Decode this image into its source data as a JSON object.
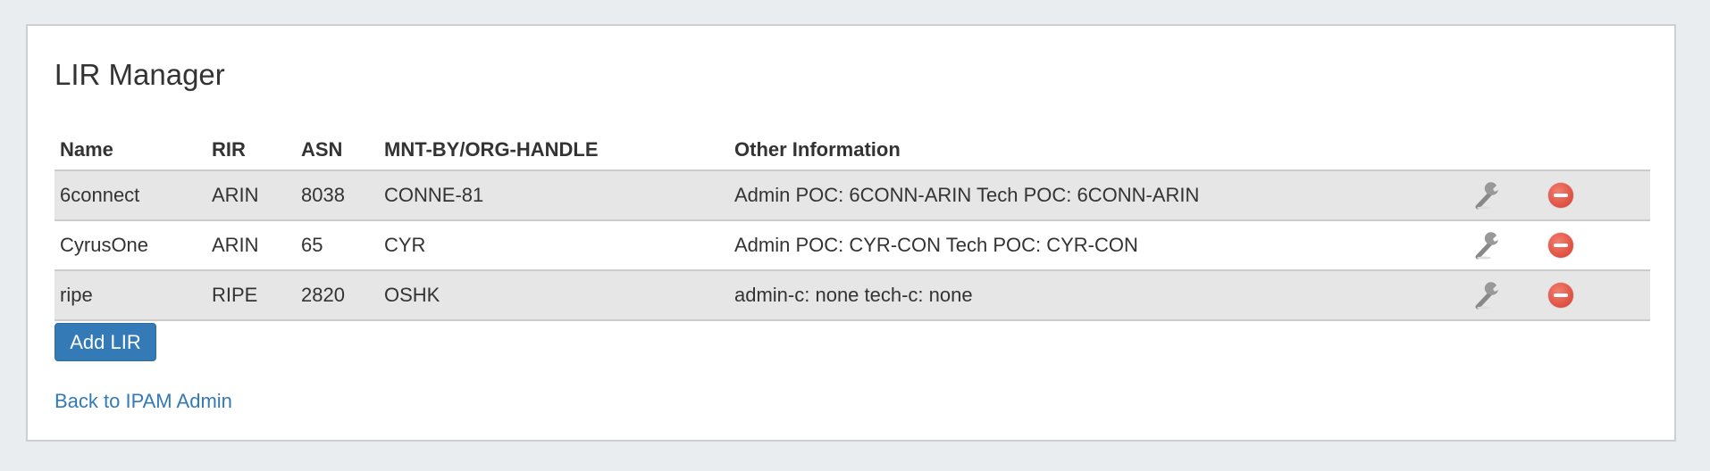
{
  "title": "LIR Manager",
  "columns": [
    "Name",
    "RIR",
    "ASN",
    "MNT-BY/ORG-HANDLE",
    "Other Information"
  ],
  "rows": [
    {
      "name": "6connect",
      "rir": "ARIN",
      "asn": "8038",
      "mnt": "CONNE-81",
      "other": "Admin POC: 6CONN-ARIN Tech POC: 6CONN-ARIN"
    },
    {
      "name": "CyrusOne",
      "rir": "ARIN",
      "asn": "65",
      "mnt": "CYR",
      "other": "Admin POC: CYR-CON Tech POC: CYR-CON"
    },
    {
      "name": "ripe",
      "rir": "RIPE",
      "asn": "2820",
      "mnt": "OSHK",
      "other": "admin-c: none tech-c: none"
    }
  ],
  "row_icons": [
    "wrench-icon",
    "delete-icon"
  ],
  "add_button": "Add LIR",
  "back_link": "Back to IPAM Admin",
  "colors": {
    "accent": "#337ab7",
    "delete": "#d63a2c"
  }
}
